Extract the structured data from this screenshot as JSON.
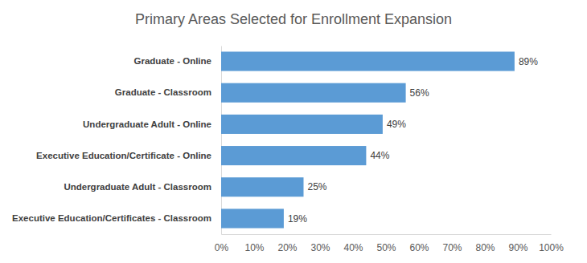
{
  "chart_data": {
    "type": "bar",
    "orientation": "horizontal",
    "title": "Primary Areas Selected for Enrollment Expansion",
    "categories": [
      "Graduate - Online",
      "Graduate - Classroom",
      "Undergraduate Adult - Online",
      "Executive Education/Certificate - Online",
      "Undergraduate Adult - Classroom",
      "Executive Education/Certificates - Classroom"
    ],
    "values": [
      89,
      56,
      49,
      44,
      25,
      19
    ],
    "value_labels": [
      "89%",
      "56%",
      "49%",
      "44%",
      "25%",
      "19%"
    ],
    "data_labels": true,
    "color": "#5b9bd5",
    "xlim": [
      0,
      100
    ],
    "xticks": [
      {
        "value": 0,
        "label": "0%"
      },
      {
        "value": 10,
        "label": "10%"
      },
      {
        "value": 20,
        "label": "20%"
      },
      {
        "value": 30,
        "label": "30%"
      },
      {
        "value": 40,
        "label": "40%"
      },
      {
        "value": 50,
        "label": "50%"
      },
      {
        "value": 60,
        "label": "60%"
      },
      {
        "value": 70,
        "label": "70%"
      },
      {
        "value": 80,
        "label": "80%"
      },
      {
        "value": 90,
        "label": "90%"
      },
      {
        "value": 100,
        "label": "100%"
      }
    ],
    "grid": false
  }
}
